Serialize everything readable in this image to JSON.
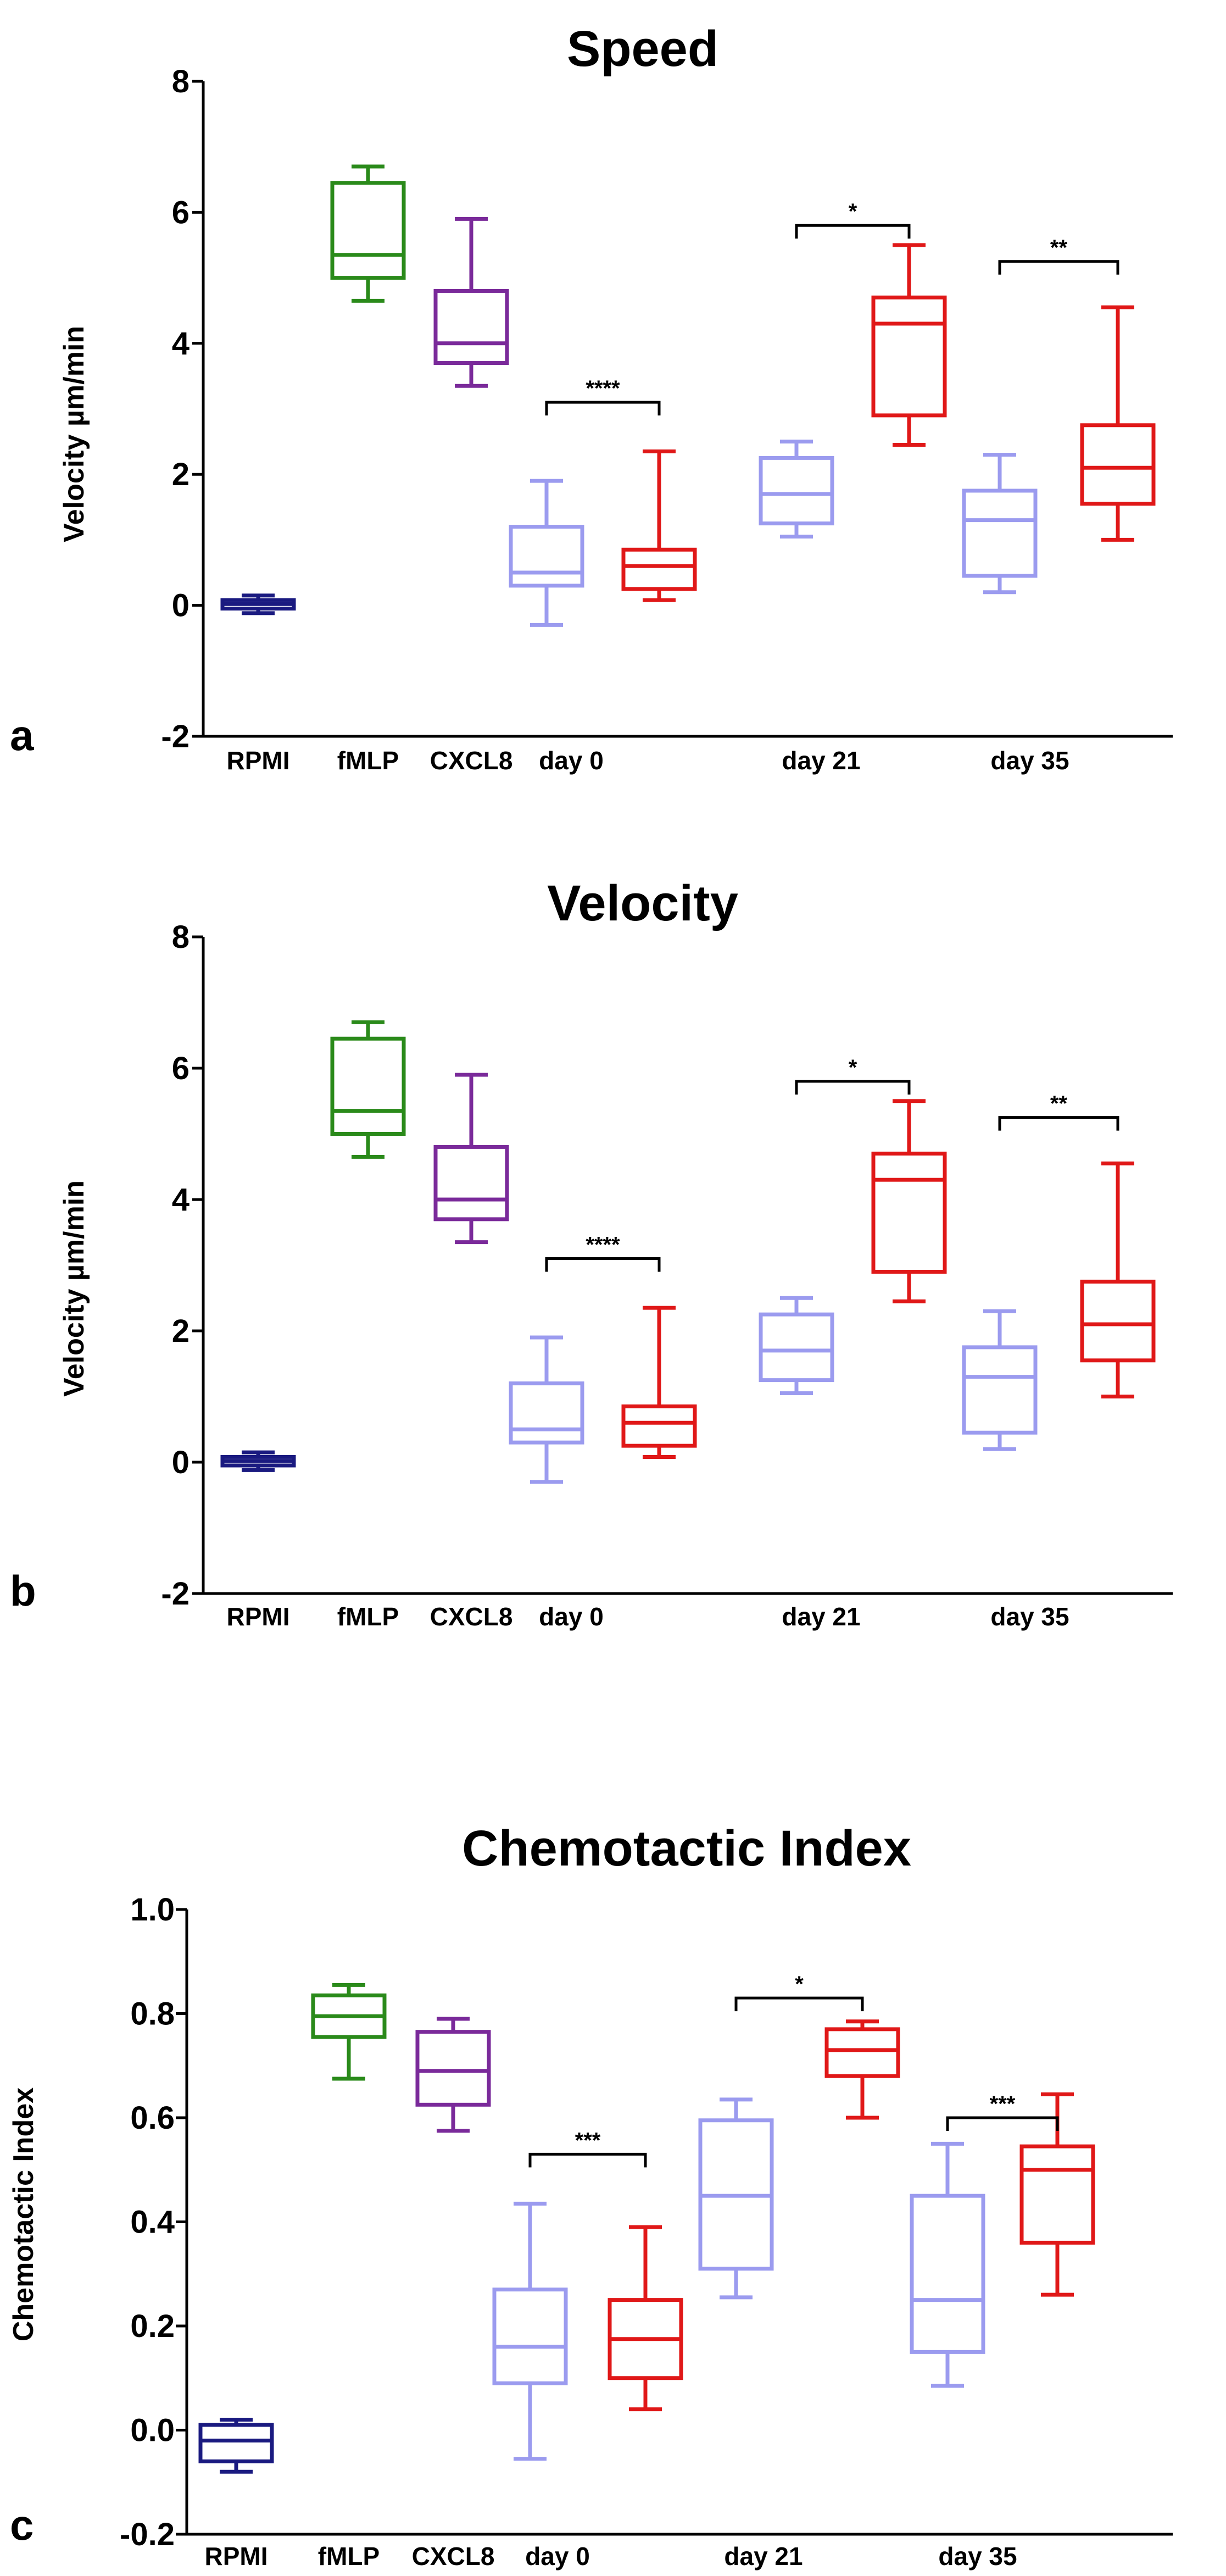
{
  "colors": {
    "rpmi": "#1a1a80",
    "fmlp": "#2a8a1a",
    "cxcl8": "#7a2a9a",
    "day_light": "#9b9bef",
    "day_red": "#e01818",
    "axis": "#000000"
  },
  "chart_data": [
    {
      "type": "box",
      "panel": "a",
      "title": "Speed",
      "ylabel": "Velocity µm/min",
      "xlabel": "",
      "ylim": [
        -2,
        8
      ],
      "yticks": [
        -2,
        0,
        2,
        4,
        6,
        8
      ],
      "categories": [
        "RPMI",
        "fMLP",
        "CXCL8",
        "day 0",
        "day 21",
        "day 35"
      ],
      "boxes": [
        {
          "group": "RPMI",
          "series": "RPMI",
          "color": "rpmi",
          "whisker_low": -0.12,
          "q1": -0.05,
          "median": 0.02,
          "q3": 0.08,
          "whisker_high": 0.15
        },
        {
          "group": "fMLP",
          "series": "fMLP",
          "color": "fmlp",
          "whisker_low": 4.65,
          "q1": 5.0,
          "median": 5.35,
          "q3": 6.45,
          "whisker_high": 6.7
        },
        {
          "group": "CXCL8",
          "series": "CXCL8",
          "color": "cxcl8",
          "whisker_low": 3.35,
          "q1": 3.7,
          "median": 4.0,
          "q3": 4.8,
          "whisker_high": 5.9
        },
        {
          "group": "day 0",
          "series": "light",
          "color": "day_light",
          "whisker_low": -0.3,
          "q1": 0.3,
          "median": 0.5,
          "q3": 1.2,
          "whisker_high": 1.9
        },
        {
          "group": "day 0",
          "series": "red",
          "color": "day_red",
          "whisker_low": 0.08,
          "q1": 0.25,
          "median": 0.6,
          "q3": 0.85,
          "whisker_high": 2.35
        },
        {
          "group": "day 21",
          "series": "light",
          "color": "day_light",
          "whisker_low": 1.05,
          "q1": 1.25,
          "median": 1.7,
          "q3": 2.25,
          "whisker_high": 2.5
        },
        {
          "group": "day 21",
          "series": "red",
          "color": "day_red",
          "whisker_low": 2.45,
          "q1": 2.9,
          "median": 4.3,
          "q3": 4.7,
          "whisker_high": 5.5
        },
        {
          "group": "day 35",
          "series": "light",
          "color": "day_light",
          "whisker_low": 0.2,
          "q1": 0.45,
          "median": 1.3,
          "q3": 1.75,
          "whisker_high": 2.3
        },
        {
          "group": "day 35",
          "series": "red",
          "color": "day_red",
          "whisker_low": 1.0,
          "q1": 1.55,
          "median": 2.1,
          "q3": 2.75,
          "whisker_high": 4.55
        }
      ],
      "significance": [
        {
          "group": "day 0",
          "label": "****",
          "y": 3.1
        },
        {
          "group": "day 21",
          "label": "*",
          "y": 5.8
        },
        {
          "group": "day 35",
          "label": "**",
          "y": 5.25
        }
      ]
    },
    {
      "type": "box",
      "panel": "b",
      "title": "Velocity",
      "ylabel": "Velocity µm/min",
      "xlabel": "",
      "ylim": [
        -2,
        8
      ],
      "yticks": [
        -2,
        0,
        2,
        4,
        6,
        8
      ],
      "categories": [
        "RPMI",
        "fMLP",
        "CXCL8",
        "day 0",
        "day 21",
        "day 35"
      ],
      "boxes": [
        {
          "group": "RPMI",
          "series": "RPMI",
          "color": "rpmi",
          "whisker_low": -0.12,
          "q1": -0.05,
          "median": 0.02,
          "q3": 0.08,
          "whisker_high": 0.15
        },
        {
          "group": "fMLP",
          "series": "fMLP",
          "color": "fmlp",
          "whisker_low": 4.65,
          "q1": 5.0,
          "median": 5.35,
          "q3": 6.45,
          "whisker_high": 6.7
        },
        {
          "group": "CXCL8",
          "series": "CXCL8",
          "color": "cxcl8",
          "whisker_low": 3.35,
          "q1": 3.7,
          "median": 4.0,
          "q3": 4.8,
          "whisker_high": 5.9
        },
        {
          "group": "day 0",
          "series": "light",
          "color": "day_light",
          "whisker_low": -0.3,
          "q1": 0.3,
          "median": 0.5,
          "q3": 1.2,
          "whisker_high": 1.9
        },
        {
          "group": "day 0",
          "series": "red",
          "color": "day_red",
          "whisker_low": 0.08,
          "q1": 0.25,
          "median": 0.6,
          "q3": 0.85,
          "whisker_high": 2.35
        },
        {
          "group": "day 21",
          "series": "light",
          "color": "day_light",
          "whisker_low": 1.05,
          "q1": 1.25,
          "median": 1.7,
          "q3": 2.25,
          "whisker_high": 2.5
        },
        {
          "group": "day 21",
          "series": "red",
          "color": "day_red",
          "whisker_low": 2.45,
          "q1": 2.9,
          "median": 4.3,
          "q3": 4.7,
          "whisker_high": 5.5
        },
        {
          "group": "day 35",
          "series": "light",
          "color": "day_light",
          "whisker_low": 0.2,
          "q1": 0.45,
          "median": 1.3,
          "q3": 1.75,
          "whisker_high": 2.3
        },
        {
          "group": "day 35",
          "series": "red",
          "color": "day_red",
          "whisker_low": 1.0,
          "q1": 1.55,
          "median": 2.1,
          "q3": 2.75,
          "whisker_high": 4.55
        }
      ],
      "significance": [
        {
          "group": "day 0",
          "label": "****",
          "y": 3.1
        },
        {
          "group": "day 21",
          "label": "*",
          "y": 5.8
        },
        {
          "group": "day 35",
          "label": "**",
          "y": 5.25
        }
      ]
    },
    {
      "type": "box",
      "panel": "c",
      "title": "Chemotactic Index",
      "ylabel": "Chemotactic Index",
      "xlabel": "",
      "ylim": [
        -0.2,
        1.0
      ],
      "yticks": [
        -0.2,
        0.0,
        0.2,
        0.4,
        0.6,
        0.8,
        1.0
      ],
      "ytick_labels": [
        "-0.2",
        "0.0",
        "0.2",
        "0.4",
        "0.6",
        "0.8",
        "1.0"
      ],
      "categories": [
        "RPMI",
        "fMLP",
        "CXCL8",
        "day 0",
        "day 21",
        "day 35"
      ],
      "boxes": [
        {
          "group": "RPMI",
          "series": "RPMI",
          "color": "rpmi",
          "whisker_low": -0.08,
          "q1": -0.06,
          "median": -0.02,
          "q3": 0.01,
          "whisker_high": 0.02
        },
        {
          "group": "fMLP",
          "series": "fMLP",
          "color": "fmlp",
          "whisker_low": 0.675,
          "q1": 0.755,
          "median": 0.795,
          "q3": 0.835,
          "whisker_high": 0.855
        },
        {
          "group": "CXCL8",
          "series": "CXCL8",
          "color": "cxcl8",
          "whisker_low": 0.575,
          "q1": 0.625,
          "median": 0.69,
          "q3": 0.765,
          "whisker_high": 0.79
        },
        {
          "group": "day 0",
          "series": "light",
          "color": "day_light",
          "whisker_low": -0.055,
          "q1": 0.09,
          "median": 0.16,
          "q3": 0.27,
          "whisker_high": 0.435
        },
        {
          "group": "day 0",
          "series": "red",
          "color": "day_red",
          "whisker_low": 0.04,
          "q1": 0.1,
          "median": 0.175,
          "q3": 0.25,
          "whisker_high": 0.39
        },
        {
          "group": "day 21",
          "series": "light",
          "color": "day_light",
          "whisker_low": 0.255,
          "q1": 0.31,
          "median": 0.45,
          "q3": 0.595,
          "whisker_high": 0.635
        },
        {
          "group": "day 21",
          "series": "red",
          "color": "day_red",
          "whisker_low": 0.6,
          "q1": 0.68,
          "median": 0.73,
          "q3": 0.77,
          "whisker_high": 0.785
        },
        {
          "group": "day 35",
          "series": "light",
          "color": "day_light",
          "whisker_low": 0.085,
          "q1": 0.15,
          "median": 0.25,
          "q3": 0.45,
          "whisker_high": 0.55
        },
        {
          "group": "day 35",
          "series": "red",
          "color": "day_red",
          "whisker_low": 0.26,
          "q1": 0.36,
          "median": 0.5,
          "q3": 0.545,
          "whisker_high": 0.645
        }
      ],
      "significance": [
        {
          "group": "day 0",
          "label": "***",
          "y": 0.53
        },
        {
          "group": "day 21",
          "label": "*",
          "y": 0.83
        },
        {
          "group": "day 35",
          "label": "***",
          "y": 0.6
        }
      ]
    }
  ]
}
